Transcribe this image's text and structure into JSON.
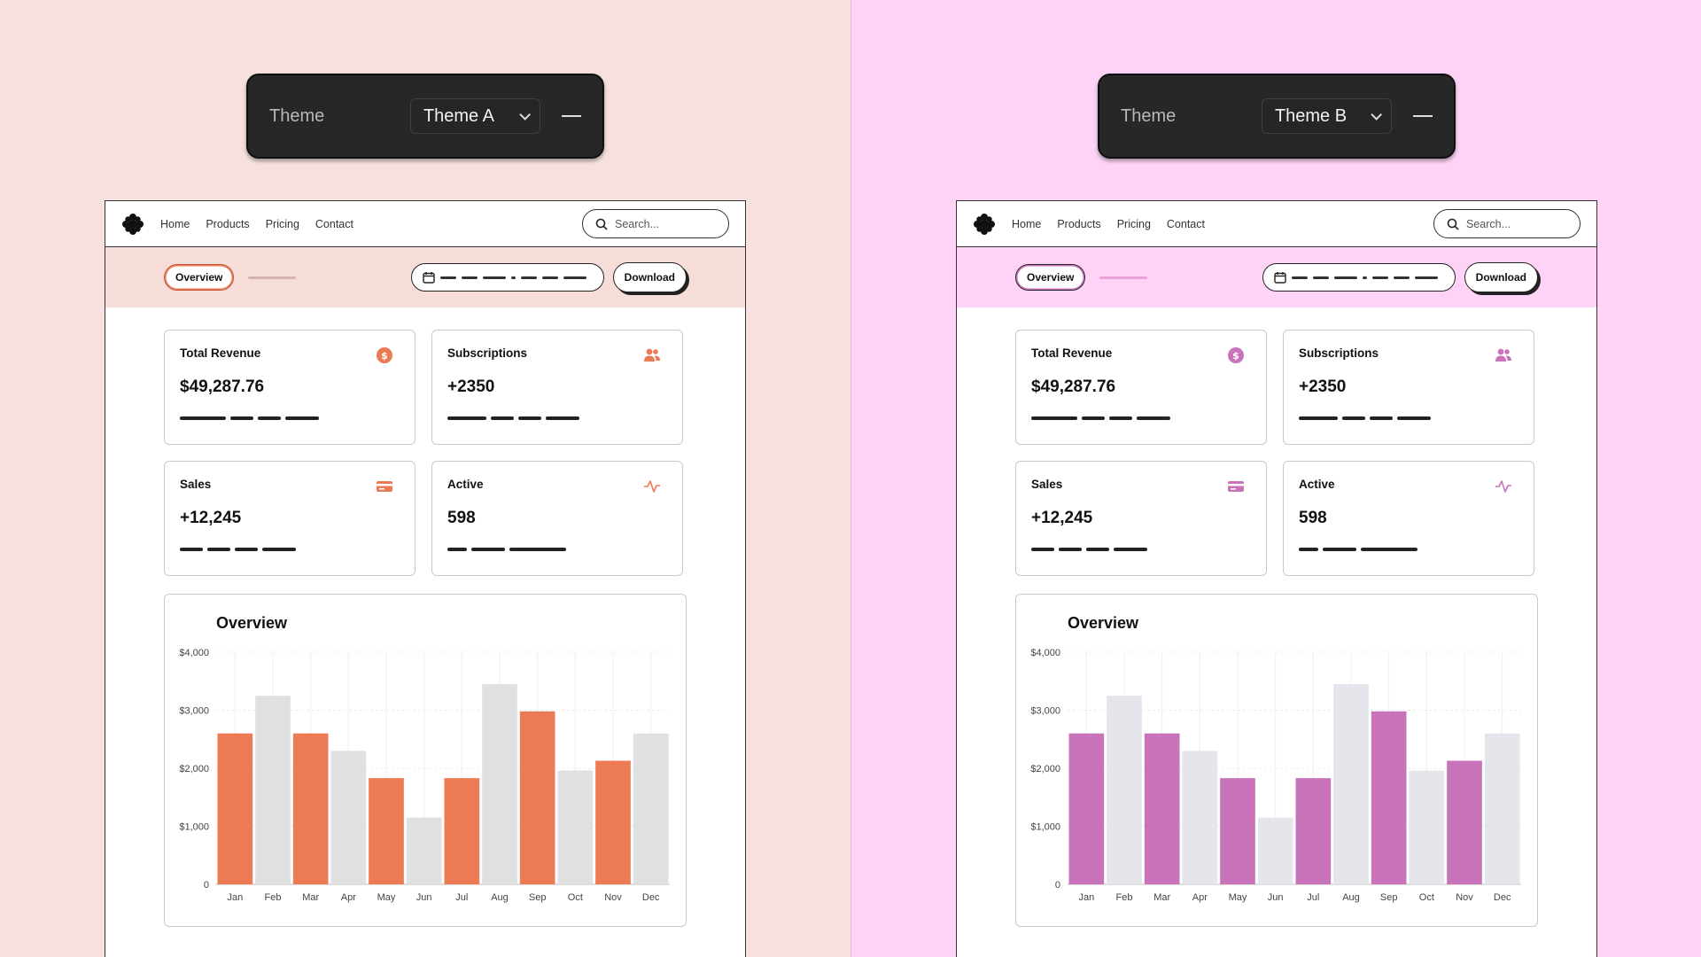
{
  "theme_panels": [
    {
      "label": "Theme",
      "selected": "Theme A"
    },
    {
      "label": "Theme",
      "selected": "Theme B"
    }
  ],
  "themes": [
    {
      "accent": "#ec7a55",
      "inactive_bar": "#e0e0e0",
      "toolbar_bg": "#f7ddd7"
    },
    {
      "accent": "#c973bb",
      "inactive_bar": "#e4e6ec",
      "toolbar_bg": "#ffd3f6"
    }
  ],
  "nav": {
    "links": [
      "Home",
      "Products",
      "Pricing",
      "Contact"
    ],
    "search_placeholder": "Search..."
  },
  "toolbar": {
    "overview_label": "Overview",
    "download_label": "Download"
  },
  "cards": [
    {
      "title": "Total Revenue",
      "value": "$49,287.76",
      "icon": "dollar-circle-icon"
    },
    {
      "title": "Subscriptions",
      "value": "+2350",
      "icon": "users-icon"
    },
    {
      "title": "Sales",
      "value": "+12,245",
      "icon": "credit-card-icon"
    },
    {
      "title": "Active",
      "value": "598",
      "icon": "activity-icon"
    }
  ],
  "chart_data": {
    "type": "bar",
    "title": "Overview",
    "categories": [
      "Jan",
      "Feb",
      "Mar",
      "Apr",
      "May",
      "Jun",
      "Jul",
      "Aug",
      "Sep",
      "Oct",
      "Nov",
      "Dec"
    ],
    "values": [
      2600,
      3250,
      2600,
      2300,
      1830,
      1150,
      1830,
      3450,
      2980,
      1960,
      2130,
      2600
    ],
    "highlighted": [
      true,
      false,
      true,
      false,
      true,
      false,
      true,
      false,
      true,
      false,
      true,
      false
    ],
    "ylim": [
      0,
      4000
    ],
    "yticks": [
      "0",
      "$1,000",
      "$2,000",
      "$3,000",
      "$4,000"
    ],
    "ytick_values": [
      0,
      1000,
      2000,
      3000,
      4000
    ],
    "grid": true
  }
}
